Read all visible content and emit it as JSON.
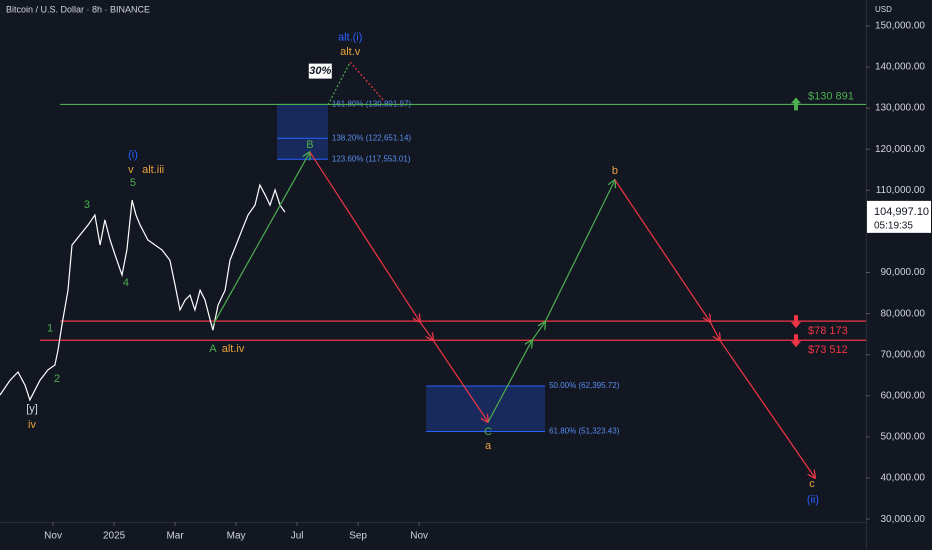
{
  "chart_data": {
    "type": "line",
    "title": "Bitcoin / U.S. Dollar · 8h · BINANCE",
    "y_unit": "USD",
    "xlim": [
      9.26,
      37.65
    ],
    "ylim": [
      29300,
      156300
    ],
    "xticks": [
      {
        "value": 11,
        "label": "Nov"
      },
      {
        "value": 13,
        "label": "2025"
      },
      {
        "value": 15,
        "label": "Mar"
      },
      {
        "value": 17,
        "label": "May"
      },
      {
        "value": 19,
        "label": "Jul"
      },
      {
        "value": 21,
        "label": "Sep"
      },
      {
        "value": 23,
        "label": "Nov"
      }
    ],
    "yticks": [
      {
        "value": 30000,
        "label": "30,000.00"
      },
      {
        "value": 40000,
        "label": "40,000.00"
      },
      {
        "value": 50000,
        "label": "50,000.00"
      },
      {
        "value": 60000,
        "label": "60,000.00"
      },
      {
        "value": 70000,
        "label": "70,000.00"
      },
      {
        "value": 80000,
        "label": "80,000.00"
      },
      {
        "value": 90000,
        "label": "90,000.00"
      },
      {
        "value": 110000,
        "label": "110,000.00"
      },
      {
        "value": 120000,
        "label": "120,000.00"
      },
      {
        "value": 130000,
        "label": "130,000.00"
      },
      {
        "value": 140000,
        "label": "140,000.00"
      },
      {
        "value": 150000,
        "label": "150,000.00"
      }
    ],
    "price": {
      "color": "#ffffff",
      "x": [
        9.26,
        9.59,
        9.85,
        10.08,
        10.24,
        10.57,
        10.83,
        11.06,
        11.16,
        11.29,
        11.49,
        11.62,
        11.88,
        12.15,
        12.37,
        12.54,
        12.7,
        12.87,
        13.03,
        13.26,
        13.42,
        13.59,
        13.72,
        13.85,
        14.11,
        14.34,
        14.57,
        14.83,
        15.0,
        15.16,
        15.33,
        15.49,
        15.65,
        15.82,
        15.98,
        16.15,
        16.24,
        16.41,
        16.64,
        16.8,
        17.0,
        17.19,
        17.39,
        17.62,
        17.78,
        17.95,
        18.11,
        18.28,
        18.44,
        18.6
      ],
      "values": [
        60200,
        63800,
        65800,
        62600,
        59000,
        63800,
        66300,
        67500,
        71100,
        77200,
        85700,
        96700,
        99100,
        101600,
        104000,
        96700,
        102800,
        97900,
        94300,
        89400,
        95500,
        107600,
        104000,
        101600,
        97900,
        96700,
        95500,
        93000,
        86900,
        80900,
        83300,
        84500,
        80900,
        85700,
        83300,
        78400,
        76000,
        82100,
        85700,
        93000,
        96700,
        100300,
        104000,
        106400,
        111300,
        108900,
        106400,
        110100,
        106400,
        104700
      ]
    },
    "last_price": {
      "value": 104997.1,
      "label": "104,997.10",
      "countdown": "05:19:35"
    },
    "levels": [
      {
        "value": 130891,
        "label": "$130 891",
        "color": "#4caf50",
        "direction": "up",
        "x_start": 11.23
      },
      {
        "value": 78173,
        "label": "$78 173",
        "color": "#f23645",
        "direction": "down",
        "x_start": 11.23
      },
      {
        "value": 73512,
        "label": "$73 512",
        "color": "#f23645",
        "direction": "down",
        "x_start": 10.57
      }
    ],
    "fib_zones": [
      {
        "x": [
          18.34,
          20.01
        ],
        "levels": [
          {
            "value": 130891.97,
            "label": "161.80% (130,891.97)"
          },
          {
            "value": 122651.14,
            "label": "138.20% (122,651.14)"
          },
          {
            "value": 117553.01,
            "label": "123.60% (117,553.01)"
          }
        ]
      },
      {
        "x": [
          23.23,
          27.13
        ],
        "levels": [
          {
            "value": 62395.72,
            "label": "50.00% (62,395.72)"
          },
          {
            "value": 51323.43,
            "label": "61.80% (51,323.43)"
          }
        ]
      }
    ],
    "projections": [
      {
        "color": "#4caf50",
        "dashed": false,
        "x": [
          16.24,
          19.42
        ],
        "values": [
          77200,
          119300
        ]
      },
      {
        "color": "#f23645",
        "dashed": false,
        "x": [
          19.42,
          23.03,
          23.46,
          25.26
        ],
        "values": [
          119300,
          78000,
          73500,
          53600
        ]
      },
      {
        "color": "#4caf50",
        "dashed": false,
        "x": [
          25.26,
          26.7,
          27.13,
          29.42
        ],
        "values": [
          53600,
          73500,
          78000,
          112500
        ]
      },
      {
        "color": "#f23645",
        "dashed": false,
        "x": [
          29.42,
          32.54,
          32.86,
          35.98
        ],
        "values": [
          112500,
          78000,
          73500,
          40000
        ]
      },
      {
        "color": "#4caf50",
        "dashed": true,
        "x": [
          20.01,
          20.74
        ],
        "values": [
          130800,
          141200
        ]
      },
      {
        "color": "#f23645",
        "dashed": true,
        "x": [
          20.74,
          21.82
        ],
        "values": [
          141200,
          132000
        ]
      }
    ],
    "annotations": [
      {
        "text": "alt.(i)",
        "x": 20.74,
        "y": 147100,
        "color": "#2962ff",
        "boxed": false
      },
      {
        "text": "alt.v",
        "x": 20.74,
        "y": 143600,
        "color": "#e8a33d",
        "boxed": false
      },
      {
        "text": "30%",
        "x": 19.76,
        "y": 139000,
        "color": "#131722",
        "boxed": true
      },
      {
        "text": "(i)",
        "x": 13.62,
        "y": 118600,
        "color": "#2962ff",
        "boxed": false
      },
      {
        "text": "v",
        "x": 13.55,
        "y": 114900,
        "color": "#e8a33d",
        "boxed": false
      },
      {
        "text": "alt.iii",
        "x": 14.28,
        "y": 114900,
        "color": "#e8a33d",
        "boxed": false
      },
      {
        "text": "5",
        "x": 13.62,
        "y": 111800,
        "color": "#4caf50",
        "boxed": false
      },
      {
        "text": "3",
        "x": 12.11,
        "y": 106400,
        "color": "#4caf50",
        "boxed": false
      },
      {
        "text": "4",
        "x": 13.39,
        "y": 87400,
        "color": "#4caf50",
        "boxed": false
      },
      {
        "text": "1",
        "x": 10.9,
        "y": 76300,
        "color": "#4caf50",
        "boxed": false
      },
      {
        "text": "2",
        "x": 11.13,
        "y": 64100,
        "color": "#4caf50",
        "boxed": false
      },
      {
        "text": "[y]",
        "x": 10.31,
        "y": 56800,
        "color": "#d1d4dc",
        "boxed": false
      },
      {
        "text": "iv",
        "x": 10.31,
        "y": 52900,
        "color": "#e8a33d",
        "boxed": false
      },
      {
        "text": "A",
        "x": 16.24,
        "y": 71400,
        "color": "#4caf50",
        "boxed": false
      },
      {
        "text": "alt.iv",
        "x": 16.9,
        "y": 71400,
        "color": "#e8a33d",
        "boxed": false
      },
      {
        "text": "B",
        "x": 19.42,
        "y": 121000,
        "color": "#4caf50",
        "boxed": false
      },
      {
        "text": "C",
        "x": 25.26,
        "y": 51200,
        "color": "#4caf50",
        "boxed": false
      },
      {
        "text": "a",
        "x": 25.26,
        "y": 47800,
        "color": "#e8a33d",
        "boxed": false
      },
      {
        "text": "b",
        "x": 29.42,
        "y": 114700,
        "color": "#e8a33d",
        "boxed": false
      },
      {
        "text": "c",
        "x": 35.88,
        "y": 38500,
        "color": "#e8a33d",
        "boxed": false
      },
      {
        "text": "(ii)",
        "x": 35.91,
        "y": 34600,
        "color": "#2962ff",
        "boxed": false
      }
    ]
  }
}
